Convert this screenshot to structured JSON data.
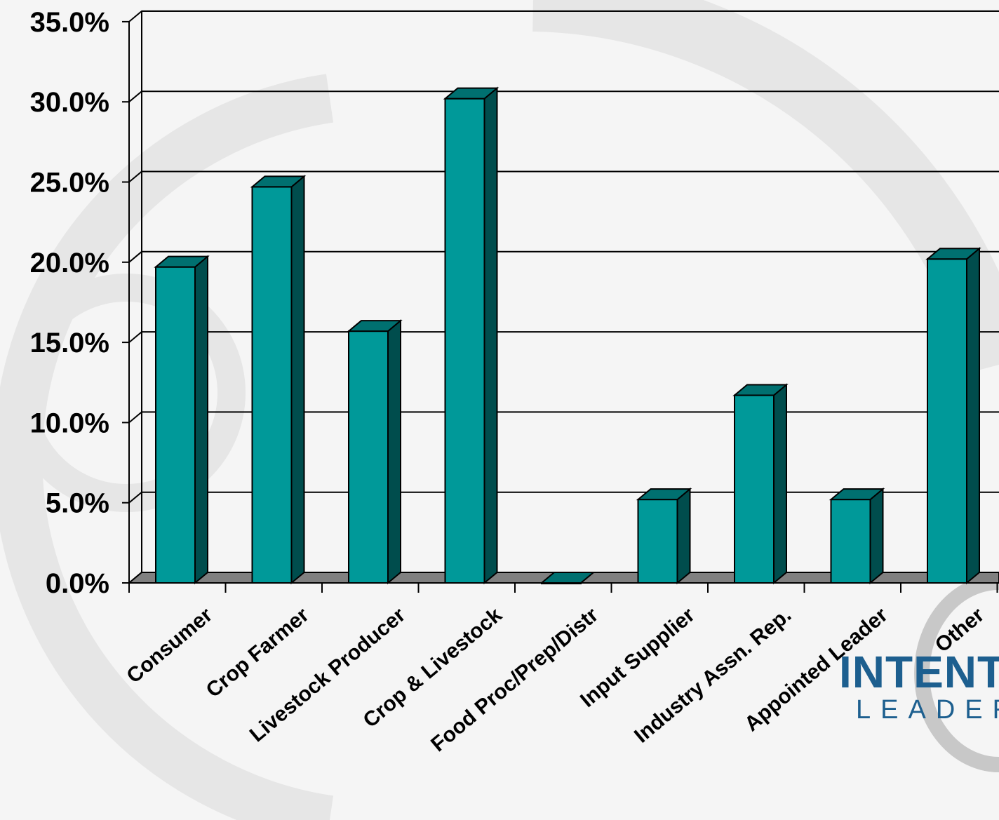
{
  "chart_data": {
    "type": "bar",
    "style": "3d-column",
    "categories": [
      "Consumer",
      "Crop Farmer",
      "Livestock Producer",
      "Crop & Livestock",
      "Food Proc/Prep/Distr",
      "Input Supplier",
      "Industry Assn. Rep.",
      "Appointed Leader",
      "Other"
    ],
    "values": [
      19.7,
      24.7,
      15.7,
      30.2,
      0.0,
      5.2,
      11.7,
      5.2,
      20.2
    ],
    "yticks": [
      "0.0%",
      "5.0%",
      "10.0%",
      "15.0%",
      "20.0%",
      "25.0%",
      "30.0%",
      "35.0%"
    ],
    "ylim": [
      0,
      35
    ],
    "grid": true,
    "legend": "none",
    "title": "",
    "xlabel": "",
    "ylabel": ""
  },
  "colors": {
    "bar_front": "#009999",
    "bar_side": "#004d4d",
    "bar_top": "#007070",
    "floor": "#808080",
    "background": "#f5f5f5"
  },
  "logo": {
    "main": "INTENTI",
    "sub": "LEADER"
  }
}
